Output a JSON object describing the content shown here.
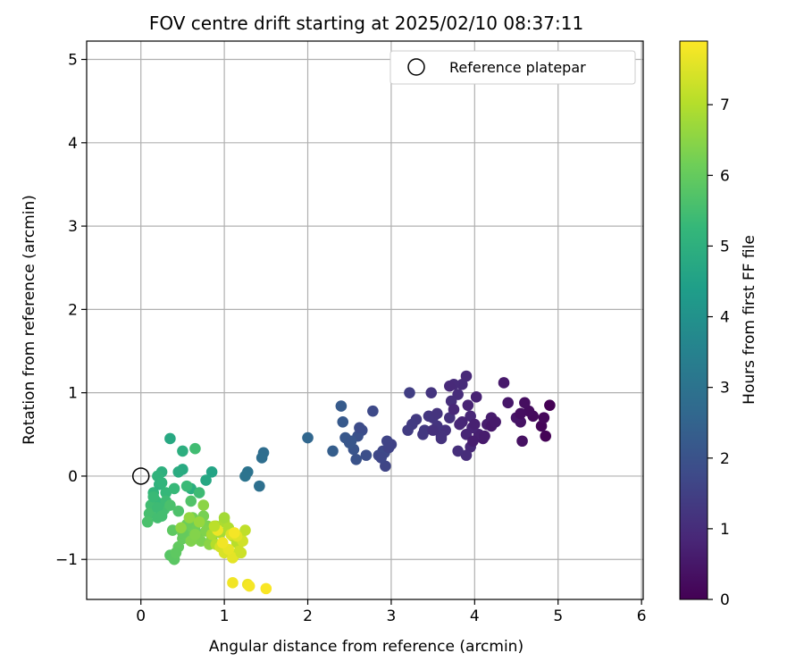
{
  "chart_data": {
    "type": "scatter",
    "title": "FOV centre drift starting at 2025/02/10 08:37:11",
    "xlabel": "Angular distance from reference (arcmin)",
    "ylabel": "Rotation from reference (arcmin)",
    "xlim": [
      -0.65,
      6.02
    ],
    "ylim": [
      -1.48,
      5.22
    ],
    "xticks": [
      "0",
      "1",
      "2",
      "3",
      "4",
      "5",
      "6"
    ],
    "yticks": [
      "−1",
      "0",
      "1",
      "2",
      "3",
      "4",
      "5"
    ],
    "grid": true,
    "legend": {
      "position": "top-right",
      "label": "Reference platepar"
    },
    "reference_point": {
      "x": 0,
      "y": 0
    },
    "colorbar": {
      "label": "Hours from first FF file",
      "range": [
        0,
        7.9
      ],
      "ticks": [
        "0",
        "1",
        "2",
        "3",
        "4",
        "5",
        "6",
        "7"
      ],
      "colormap": "viridis"
    },
    "colormap_stops": [
      "#440154",
      "#482878",
      "#3e4a89",
      "#31688e",
      "#26828e",
      "#1f9e89",
      "#35b779",
      "#6ece58",
      "#b5de2b",
      "#fde725"
    ],
    "series": [
      {
        "x": [
          4.9,
          4.85,
          4.8,
          4.83,
          4.7,
          4.65,
          4.6,
          4.57,
          4.55,
          4.5,
          4.55,
          4.4,
          4.35,
          4.2,
          4.1,
          4.05,
          4.15,
          4.02,
          3.97,
          3.95,
          3.92,
          3.9,
          3.85,
          3.8,
          3.75,
          3.72,
          3.7,
          3.65,
          3.6,
          3.55,
          3.5,
          3.45,
          3.4,
          3.38,
          3.3,
          3.25,
          3.2,
          3.22,
          3.95,
          3.9,
          3.8,
          3.85,
          3.75,
          3.7,
          3.6,
          3.55,
          3.5,
          3.48,
          3.9,
          3.82,
          4.0,
          4.2,
          4.25,
          4.12,
          3.98
        ],
        "y": [
          0.85,
          0.48,
          0.6,
          0.7,
          0.72,
          0.78,
          0.88,
          0.42,
          0.65,
          0.7,
          0.75,
          0.88,
          1.12,
          0.7,
          0.45,
          0.5,
          0.62,
          0.95,
          0.58,
          0.72,
          0.85,
          1.2,
          1.1,
          0.98,
          1.1,
          0.9,
          0.7,
          0.55,
          0.48,
          0.6,
          0.7,
          0.72,
          0.55,
          0.5,
          0.68,
          0.62,
          0.55,
          1.0,
          0.35,
          0.25,
          0.3,
          0.65,
          0.8,
          1.08,
          0.45,
          0.75,
          0.55,
          1.0,
          0.5,
          0.62,
          0.62,
          0.6,
          0.65,
          0.48,
          0.42
        ],
        "hours": [
          0.0,
          0.05,
          0.1,
          0.15,
          0.2,
          0.25,
          0.3,
          0.35,
          0.4,
          0.45,
          0.3,
          0.5,
          0.55,
          0.6,
          0.55,
          0.7,
          0.62,
          0.75,
          0.8,
          0.85,
          0.78,
          0.9,
          0.95,
          1.0,
          0.98,
          1.05,
          1.1,
          1.12,
          1.15,
          1.2,
          1.22,
          1.25,
          1.28,
          1.3,
          1.35,
          1.38,
          1.4,
          1.45,
          0.9,
          1.0,
          1.05,
          0.82,
          0.88,
          0.92,
          1.15,
          1.18,
          1.1,
          1.2,
          0.8,
          0.85,
          0.7,
          0.5,
          0.55,
          0.6,
          0.65
        ]
      },
      {
        "x": [
          3.0,
          2.95,
          2.93,
          2.9,
          2.85,
          2.92,
          2.78,
          2.65,
          2.7,
          2.6,
          2.58,
          2.55,
          2.5,
          2.45,
          2.42,
          2.4,
          2.3,
          2.0,
          2.62,
          2.52,
          2.88,
          2.97
        ],
        "y": [
          0.38,
          0.42,
          0.12,
          0.3,
          0.25,
          0.28,
          0.78,
          0.55,
          0.25,
          0.48,
          0.2,
          0.32,
          0.4,
          0.46,
          0.65,
          0.84,
          0.3,
          0.46,
          0.58,
          0.42,
          0.22,
          0.34
        ],
        "hours": [
          1.55,
          1.6,
          1.62,
          1.65,
          1.7,
          1.72,
          1.75,
          1.85,
          1.9,
          1.95,
          2.0,
          2.05,
          2.1,
          2.15,
          2.2,
          2.25,
          2.35,
          2.6,
          1.8,
          2.12,
          1.68,
          1.58
        ]
      },
      {
        "x": [
          1.47,
          1.45,
          1.42,
          1.28,
          1.25,
          0.85,
          0.78,
          0.6,
          0.5,
          0.45,
          0.35,
          0.25,
          0.2,
          0.15,
          0.22,
          0.3,
          0.4,
          0.55,
          0.7,
          0.18,
          0.12,
          0.28,
          0.1,
          0.08,
          0.2,
          0.3,
          0.5,
          0.65,
          0.25,
          0.15,
          0.35,
          0.45,
          0.6,
          0.2,
          0.25
        ],
        "y": [
          0.28,
          0.22,
          -0.12,
          0.05,
          0.0,
          0.05,
          -0.05,
          -0.15,
          0.08,
          0.05,
          0.45,
          0.05,
          0.0,
          -0.2,
          -0.1,
          -0.2,
          -0.15,
          -0.12,
          -0.2,
          -0.3,
          -0.35,
          -0.4,
          -0.45,
          -0.55,
          -0.5,
          -0.3,
          0.3,
          0.33,
          -0.08,
          -0.25,
          -0.35,
          -0.42,
          -0.3,
          -0.38,
          -0.48
        ],
        "hours": [
          2.8,
          2.85,
          2.9,
          3.0,
          3.05,
          4.6,
          4.7,
          4.9,
          4.8,
          4.85,
          4.75,
          5.0,
          5.1,
          5.2,
          5.05,
          5.25,
          5.3,
          5.35,
          5.4,
          5.3,
          5.45,
          5.5,
          5.55,
          5.6,
          5.5,
          5.4,
          4.95,
          5.45,
          5.15,
          5.35,
          5.6,
          5.65,
          5.7,
          5.4,
          5.5
        ]
      },
      {
        "x": [
          0.35,
          0.4,
          0.45,
          0.5,
          0.55,
          0.6,
          0.65,
          0.7,
          0.75,
          0.8,
          0.38,
          0.42,
          0.5,
          0.55,
          0.62,
          0.68,
          0.72,
          0.78,
          0.85,
          0.9,
          0.6,
          0.65,
          0.75,
          0.82,
          0.48,
          0.58,
          0.7
        ],
        "y": [
          -0.95,
          -1.0,
          -0.85,
          -0.75,
          -0.7,
          -0.6,
          -0.65,
          -0.55,
          -0.48,
          -0.6,
          -0.65,
          -0.92,
          -0.68,
          -0.58,
          -0.5,
          -0.72,
          -0.78,
          -0.66,
          -0.75,
          -0.62,
          -0.78,
          -0.7,
          -0.35,
          -0.82,
          -0.62,
          -0.5,
          -0.55
        ],
        "hours": [
          5.8,
          5.85,
          5.95,
          6.0,
          6.05,
          6.1,
          6.15,
          6.2,
          6.25,
          6.3,
          5.9,
          5.9,
          6.0,
          6.1,
          6.2,
          6.25,
          6.3,
          6.35,
          6.4,
          6.45,
          6.35,
          6.4,
          6.5,
          6.5,
          6.55,
          6.6,
          6.65
        ]
      },
      {
        "x": [
          0.9,
          0.95,
          1.0,
          1.05,
          1.1,
          1.15,
          1.2,
          1.25,
          1.0,
          0.85,
          0.9,
          1.05,
          1.12,
          1.18,
          1.22,
          0.95,
          1.0,
          1.08,
          1.15,
          1.1,
          1.05,
          0.92,
          0.98,
          1.12,
          1.2,
          1.28,
          1.1,
          1.3,
          1.5,
          0.88
        ],
        "y": [
          -0.6,
          -0.68,
          -0.55,
          -0.62,
          -0.72,
          -0.8,
          -0.75,
          -0.65,
          -0.5,
          -0.7,
          -0.82,
          -0.9,
          -0.95,
          -0.9,
          -0.78,
          -0.85,
          -0.92,
          -0.7,
          -0.72,
          -0.98,
          -0.88,
          -0.65,
          -0.8,
          -0.68,
          -0.92,
          -1.3,
          -1.28,
          -1.32,
          -1.35,
          -0.6
        ],
        "hours": [
          6.8,
          6.85,
          6.9,
          6.95,
          7.0,
          7.05,
          7.1,
          7.15,
          6.8,
          6.9,
          7.0,
          7.2,
          7.25,
          7.3,
          7.35,
          7.4,
          7.45,
          7.5,
          7.55,
          7.6,
          7.65,
          7.7,
          7.75,
          7.8,
          7.3,
          7.7,
          7.75,
          7.8,
          7.85,
          7.1
        ]
      }
    ]
  }
}
